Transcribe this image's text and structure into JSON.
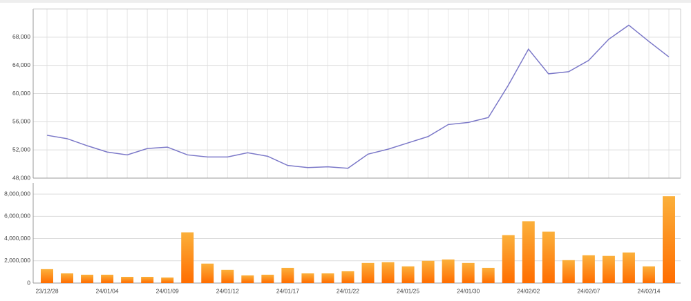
{
  "chart_data": [
    {
      "type": "line",
      "color": "#7b78c8",
      "grid": true,
      "values": [
        54080,
        53600,
        52600,
        51700,
        51300,
        52200,
        52400,
        51300,
        51000,
        51000,
        51600,
        51100,
        49800,
        49500,
        49600,
        49400,
        51400,
        52100,
        53000,
        53900,
        55600,
        55900,
        56600,
        61200,
        66300,
        62800,
        63100,
        64700,
        67700,
        69700,
        67400,
        65200
      ],
      "ylim": [
        48000,
        72000
      ],
      "yticks": [
        {
          "value": 48000,
          "label": "48,000"
        },
        {
          "value": 52000,
          "label": "52,000"
        },
        {
          "value": 56000,
          "label": "56,000"
        },
        {
          "value": 60000,
          "label": "60,000"
        },
        {
          "value": 64000,
          "label": "64,000"
        },
        {
          "value": 68000,
          "label": "68,000"
        }
      ]
    },
    {
      "type": "bar",
      "color": "#ff6d00",
      "grid": true,
      "categories": [
        "23/12/28",
        null,
        null,
        "24/01/04",
        null,
        null,
        "24/01/09",
        null,
        null,
        "24/01/12",
        null,
        null,
        "24/01/17",
        null,
        null,
        "24/01/22",
        null,
        null,
        "24/01/25",
        null,
        null,
        "24/01/30",
        null,
        null,
        "24/02/02",
        null,
        null,
        "24/02/07",
        null,
        null,
        "24/02/14",
        null
      ],
      "values": [
        1250000,
        870000,
        750000,
        750000,
        560000,
        560000,
        500000,
        4560000,
        1750000,
        1190000,
        690000,
        750000,
        1370000,
        870000,
        870000,
        1060000,
        1810000,
        1870000,
        1500000,
        2000000,
        2120000,
        1810000,
        1370000,
        4310000,
        5560000,
        4620000,
        2060000,
        2500000,
        2440000,
        2750000,
        1500000,
        7810000
      ],
      "ylim": [
        0,
        9000000
      ],
      "yticks": [
        0,
        {
          "value": 2000000,
          "label": "2,000,000"
        },
        {
          "value": 4000000,
          "label": "4,000,000"
        },
        {
          "value": 6000000,
          "label": "6,000,000"
        },
        {
          "value": 8000000,
          "label": "8,000,000"
        }
      ]
    }
  ]
}
